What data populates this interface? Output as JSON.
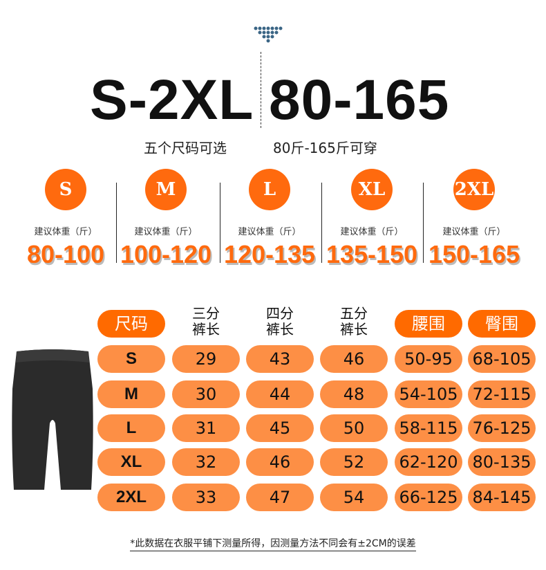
{
  "header": {
    "size_range": "S-2XL",
    "weight_range": "80-165",
    "sizes_caption": "五个尺码可选",
    "weight_caption": "80斤-165斤可穿"
  },
  "sizes": [
    {
      "size": "S",
      "label": "建议体重（斤）",
      "weight": "80-100"
    },
    {
      "size": "M",
      "label": "建议体重（斤）",
      "weight": "100-120"
    },
    {
      "size": "L",
      "label": "建议体重（斤）",
      "weight": "120-135"
    },
    {
      "size": "XL",
      "label": "建议体重（斤）",
      "weight": "135-150"
    },
    {
      "size": "2XL",
      "label": "建议体重（斤）",
      "weight": "150-165"
    }
  ],
  "table": {
    "headers": [
      "尺码",
      [
        "三分",
        "裤长"
      ],
      [
        "四分",
        "裤长"
      ],
      [
        "五分",
        "裤长"
      ],
      "腰围",
      "臀围"
    ],
    "rows": [
      [
        "S",
        "29",
        "43",
        "46",
        "50-95",
        "68-105"
      ],
      [
        "M",
        "30",
        "44",
        "48",
        "54-105",
        "72-115"
      ],
      [
        "L",
        "31",
        "45",
        "50",
        "58-115",
        "76-125"
      ],
      [
        "XL",
        "32",
        "46",
        "52",
        "62-120",
        "80-135"
      ],
      [
        "2XL",
        "33",
        "47",
        "54",
        "66-125",
        "84-145"
      ]
    ]
  },
  "footnote": "*此数据在衣服平铺下测量所得，因测量方法不同会有±2CM的误差",
  "colors": {
    "accent": "#ff6a0e",
    "pill": "#fd8f45",
    "dots": "#3a6585"
  }
}
